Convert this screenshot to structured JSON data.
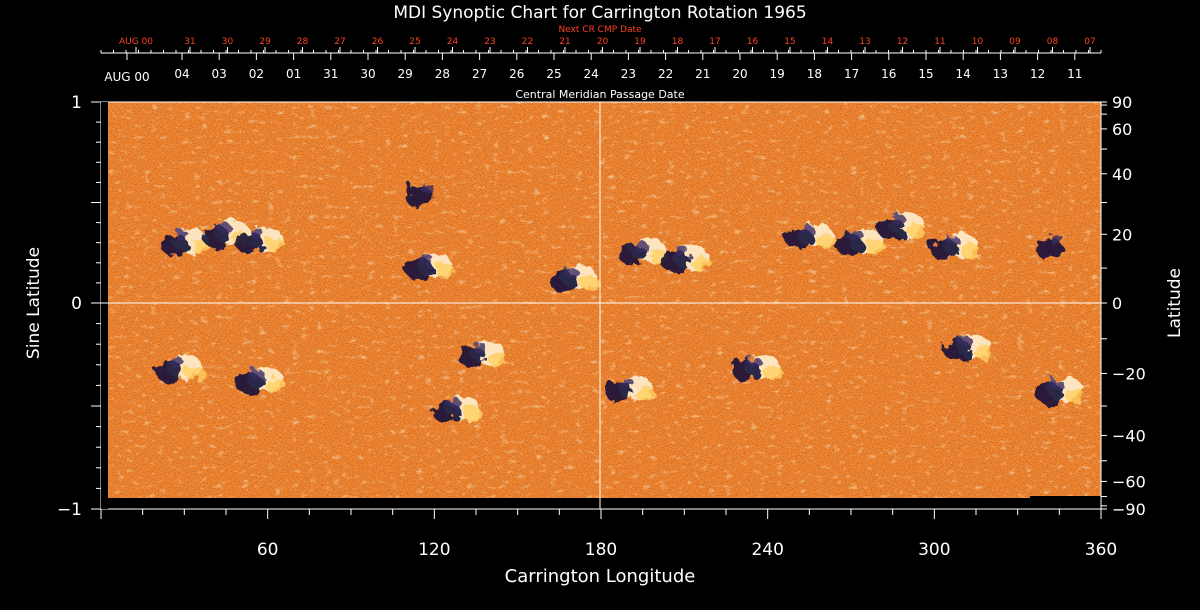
{
  "chart_data": {
    "type": "heatmap",
    "title": "MDI Synoptic Chart for Carrington Rotation 1965",
    "xlabel": "Carrington Longitude",
    "ylabel_left": "Sine Latitude",
    "ylabel_right": "Latitude",
    "xlim": [
      0,
      360
    ],
    "ylim": [
      -1,
      1
    ],
    "x_ticks": [
      60,
      120,
      180,
      240,
      300,
      360
    ],
    "y_left_ticks": [
      {
        "value": 1,
        "label": "1"
      },
      {
        "value": 0,
        "label": "0"
      },
      {
        "value": -1,
        "label": "−1"
      }
    ],
    "y_right_ticks": [
      90,
      60,
      40,
      20,
      0,
      -20,
      -40,
      -60,
      -90
    ],
    "y_right_tick_labels": [
      "90",
      "60",
      "40",
      "20",
      "0",
      "−20",
      "−40",
      "−60",
      "−90"
    ],
    "cmp_axis_label": "Central Meridian Passage Date",
    "cmp_dates": [
      "AUG 00",
      "04",
      "03",
      "02",
      "01",
      "31",
      "30",
      "29",
      "28",
      "27",
      "26",
      "25",
      "24",
      "23",
      "22",
      "21",
      "20",
      "19",
      "18",
      "17",
      "16",
      "15",
      "14",
      "13",
      "12",
      "11"
    ],
    "next_cr_label": "Next CR CMP Date",
    "next_cr_dates": [
      "AUG 00",
      "31",
      "30",
      "29",
      "28",
      "27",
      "26",
      "25",
      "24",
      "23",
      "22",
      "21",
      "20",
      "19",
      "18",
      "17",
      "16",
      "15",
      "14",
      "13",
      "12",
      "11",
      "10",
      "09",
      "08",
      "07"
    ],
    "colors": {
      "background": "#000000",
      "field_base": "#e65a12",
      "positive_polarity": "#fff6d8",
      "negative_polarity": "#14123a",
      "axis": "#ffffff",
      "next_cr_text": "#ff4020"
    },
    "active_regions": [
      {
        "lon": 30,
        "sinlat": 0.3,
        "polarity": "mixed"
      },
      {
        "lon": 45,
        "sinlat": 0.34,
        "polarity": "mixed"
      },
      {
        "lon": 57,
        "sinlat": 0.31,
        "polarity": "mixed"
      },
      {
        "lon": 118,
        "sinlat": 0.18,
        "polarity": "mixed"
      },
      {
        "lon": 170,
        "sinlat": 0.12,
        "polarity": "mixed"
      },
      {
        "lon": 118,
        "sinlat": 0.54,
        "polarity": "negative"
      },
      {
        "lon": 195,
        "sinlat": 0.25,
        "polarity": "mixed"
      },
      {
        "lon": 210,
        "sinlat": 0.22,
        "polarity": "mixed"
      },
      {
        "lon": 255,
        "sinlat": 0.33,
        "polarity": "mixed"
      },
      {
        "lon": 273,
        "sinlat": 0.3,
        "polarity": "mixed"
      },
      {
        "lon": 288,
        "sinlat": 0.38,
        "polarity": "mixed"
      },
      {
        "lon": 307,
        "sinlat": 0.28,
        "polarity": "mixed"
      },
      {
        "lon": 345,
        "sinlat": 0.28,
        "polarity": "negative"
      },
      {
        "lon": 28,
        "sinlat": -0.32,
        "polarity": "mixed"
      },
      {
        "lon": 57,
        "sinlat": -0.38,
        "polarity": "mixed"
      },
      {
        "lon": 128,
        "sinlat": -0.52,
        "polarity": "mixed"
      },
      {
        "lon": 137,
        "sinlat": -0.25,
        "polarity": "mixed"
      },
      {
        "lon": 190,
        "sinlat": -0.42,
        "polarity": "mixed"
      },
      {
        "lon": 236,
        "sinlat": -0.32,
        "polarity": "mixed"
      },
      {
        "lon": 312,
        "sinlat": -0.22,
        "polarity": "mixed"
      },
      {
        "lon": 345,
        "sinlat": -0.43,
        "polarity": "mixed"
      }
    ]
  }
}
